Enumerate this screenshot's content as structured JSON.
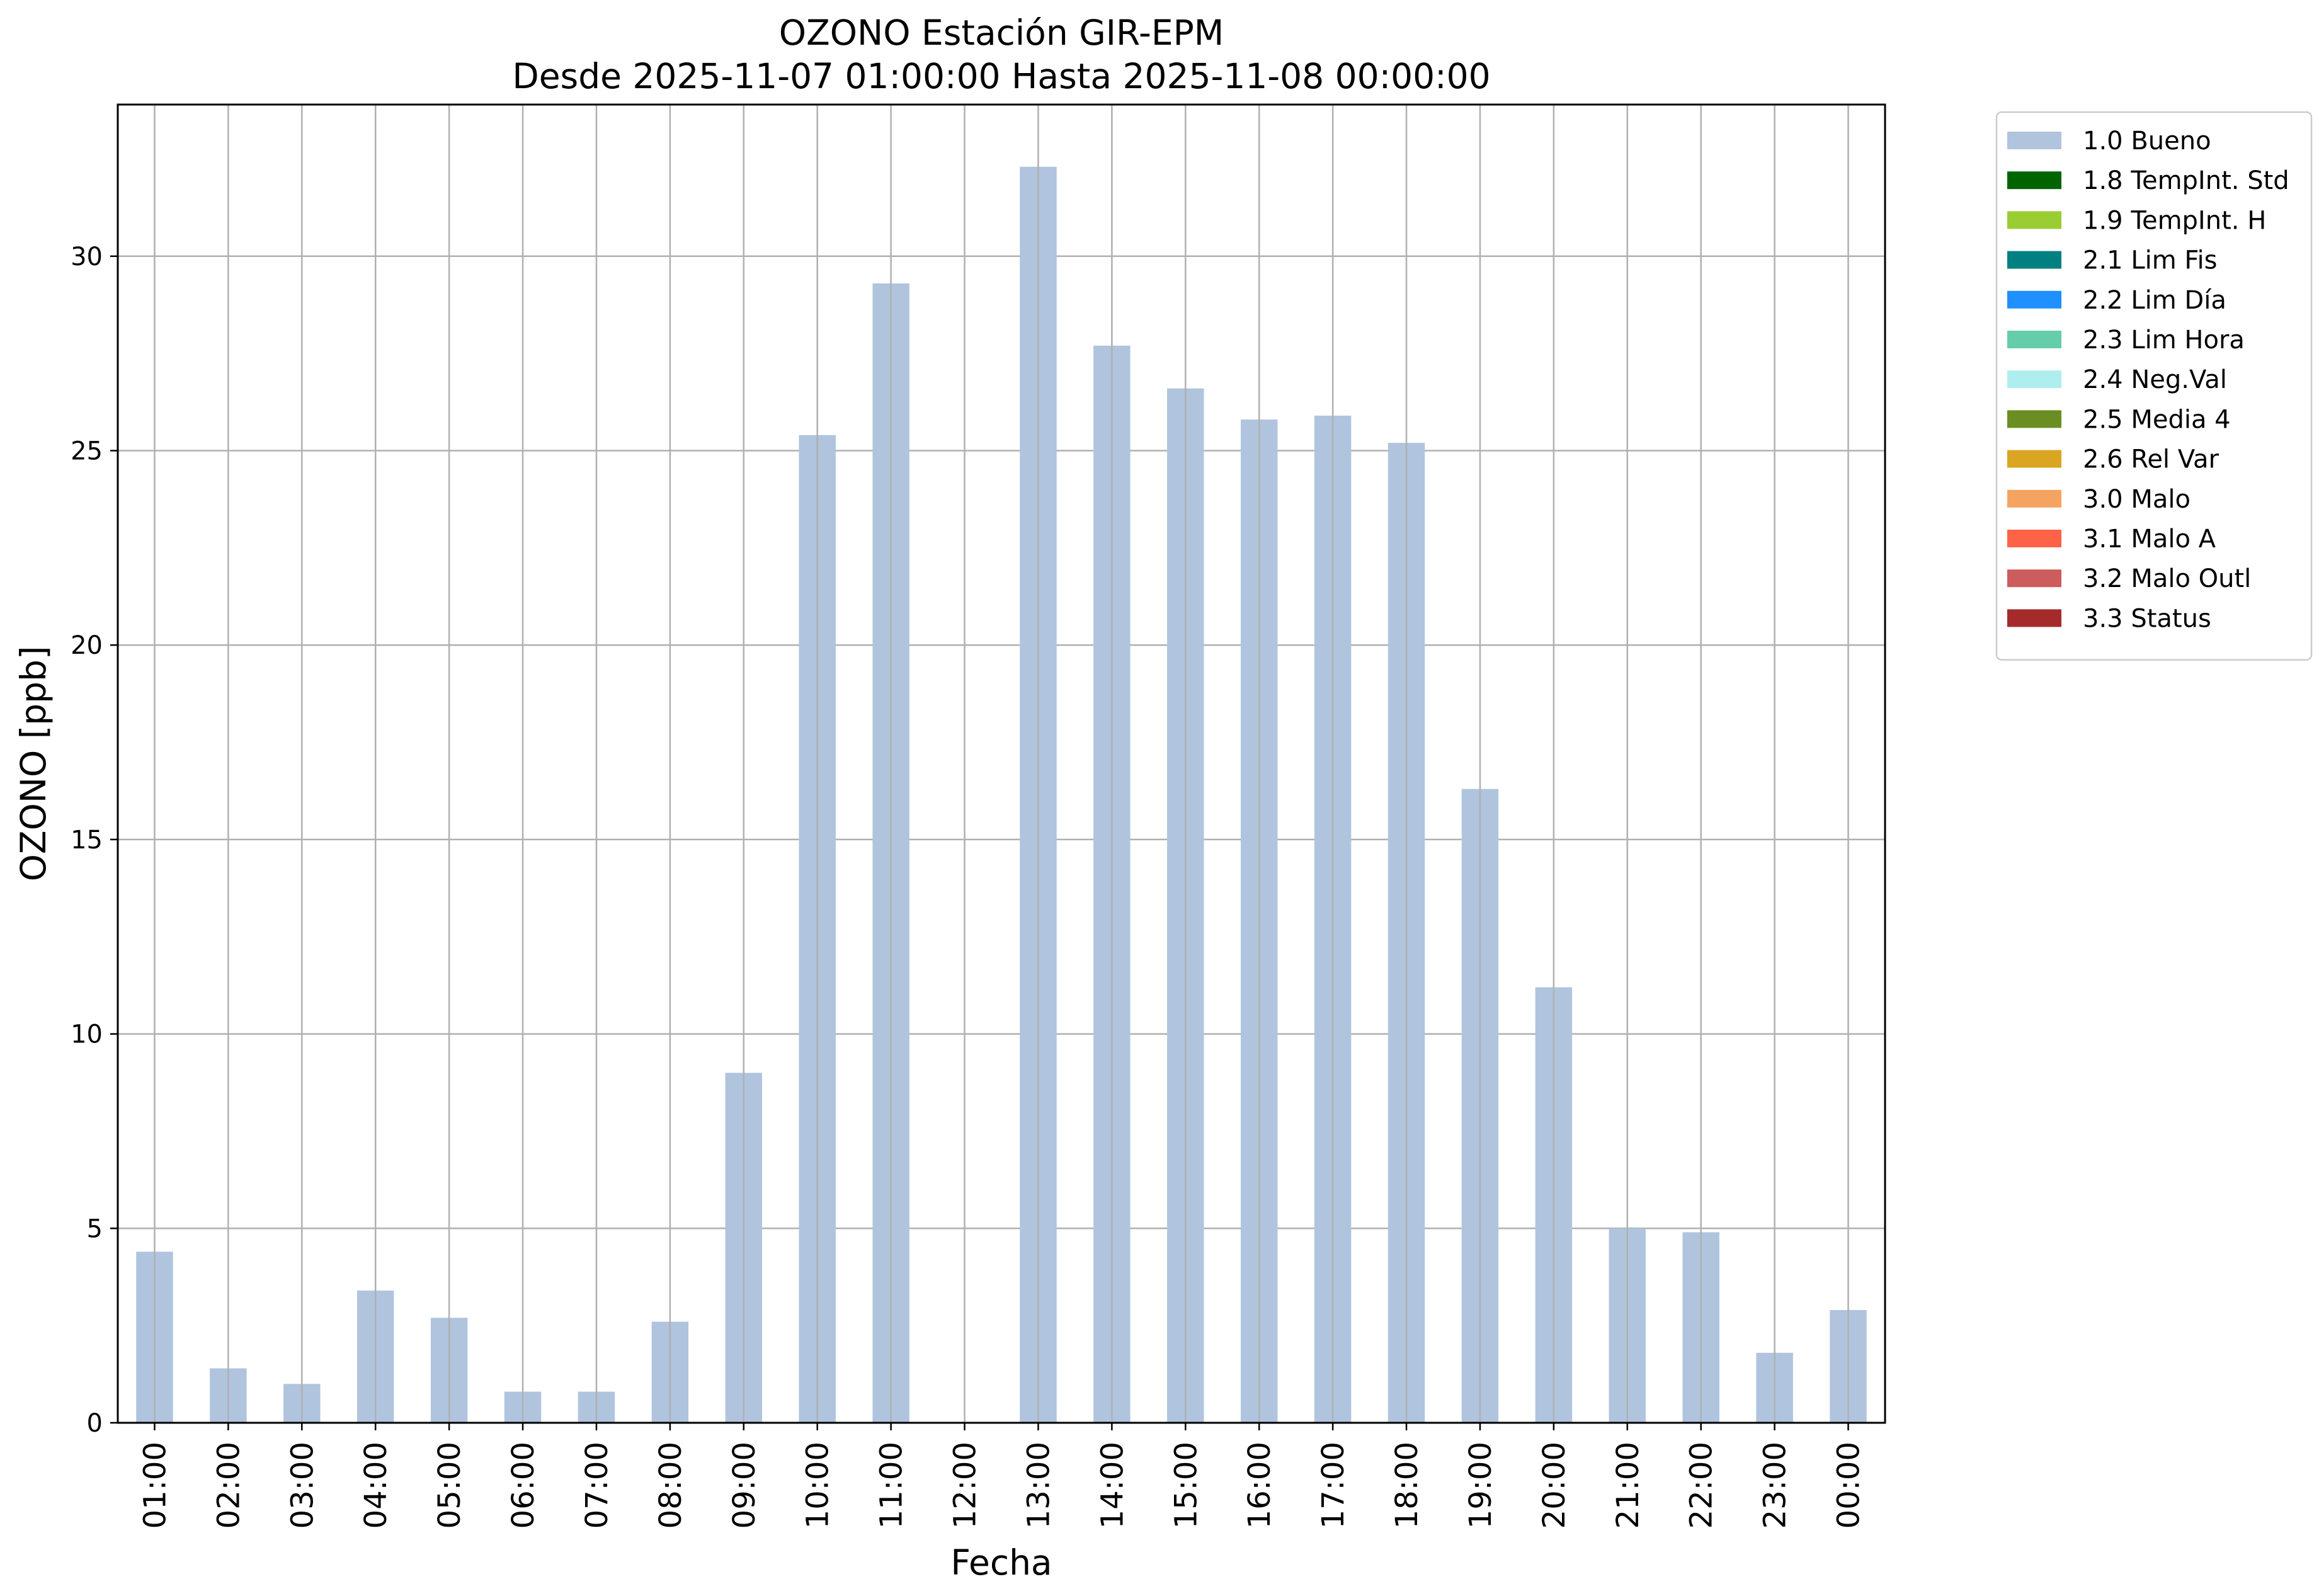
{
  "chart_data": {
    "type": "bar",
    "title": "OZONO Estación GIR-EPM",
    "subtitle": "Desde 2025-11-07 01:00:00 Hasta 2025-11-08 00:00:00",
    "xlabel": "Fecha",
    "ylabel": "OZONO [ppb]",
    "ylim": [
      0,
      33.9
    ],
    "yticks": [
      0,
      5,
      10,
      15,
      20,
      25,
      30
    ],
    "grid": true,
    "legend_position": "outside-top-right",
    "categories": [
      "01:00",
      "02:00",
      "03:00",
      "04:00",
      "05:00",
      "06:00",
      "07:00",
      "08:00",
      "09:00",
      "10:00",
      "11:00",
      "12:00",
      "13:00",
      "14:00",
      "15:00",
      "16:00",
      "17:00",
      "18:00",
      "19:00",
      "20:00",
      "21:00",
      "22:00",
      "23:00",
      "00:00"
    ],
    "series": [
      {
        "name": "1.0 Bueno",
        "color": "#b0c4de",
        "values": [
          4.4,
          1.4,
          1.0,
          3.4,
          2.7,
          0.8,
          0.8,
          2.6,
          9.0,
          25.4,
          29.3,
          null,
          32.3,
          27.7,
          26.6,
          25.8,
          25.9,
          25.2,
          16.3,
          11.2,
          5.0,
          4.9,
          1.8,
          2.9
        ]
      }
    ],
    "legend": [
      {
        "label": "1.0 Bueno",
        "color": "#b0c4de"
      },
      {
        "label": "1.8 TempInt. Std",
        "color": "#006400"
      },
      {
        "label": "1.9 TempInt. H",
        "color": "#9acd32"
      },
      {
        "label": "2.1 Lim Fis",
        "color": "#008080"
      },
      {
        "label": "2.2 Lim Día",
        "color": "#1e90ff"
      },
      {
        "label": "2.3 Lim Hora",
        "color": "#66cdaa"
      },
      {
        "label": "2.4 Neg.Val",
        "color": "#afeeee"
      },
      {
        "label": "2.5 Media 4",
        "color": "#6b8e23"
      },
      {
        "label": "2.6 Rel Var",
        "color": "#daa520"
      },
      {
        "label": "3.0 Malo",
        "color": "#f4a460"
      },
      {
        "label": "3.1 Malo A",
        "color": "#ff6347"
      },
      {
        "label": "3.2 Malo Outl",
        "color": "#cd5c5c"
      },
      {
        "label": "3.3 Status",
        "color": "#a52a2a"
      }
    ]
  }
}
